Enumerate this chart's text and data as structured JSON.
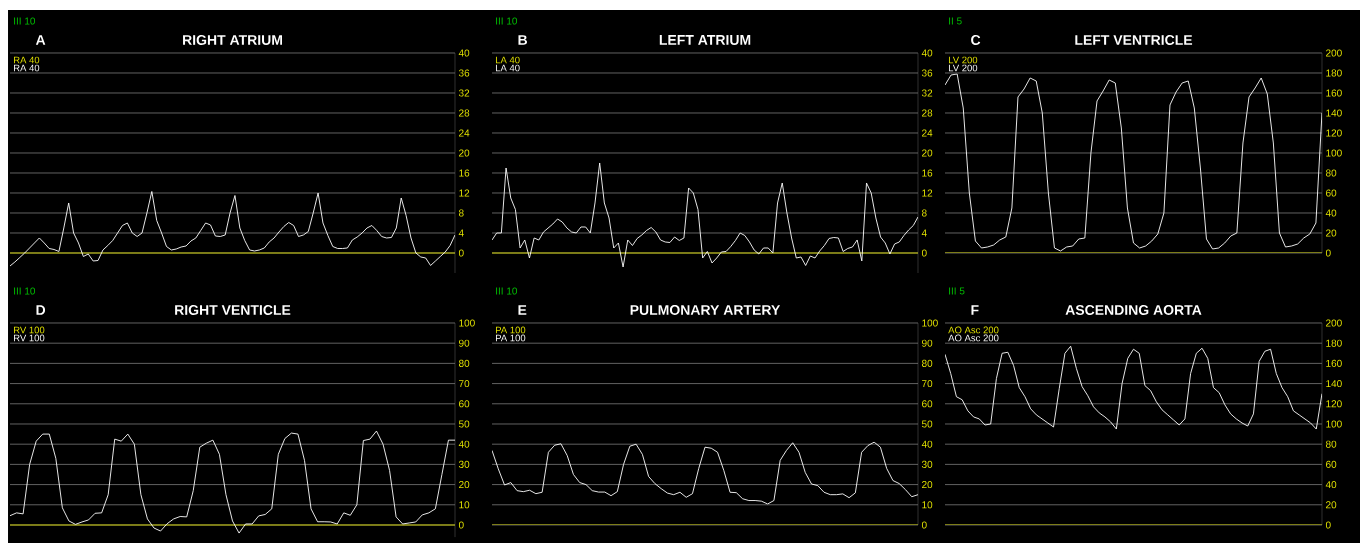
{
  "chart_data": [
    {
      "type": "line",
      "title": "RIGHT ATRIUM",
      "annotations": [
        "A",
        "RA 40",
        "RA 40",
        "III 10"
      ],
      "grid": "y",
      "tick_labels": "y",
      "ylim": [
        -4,
        40
      ],
      "yticks": [
        0,
        4,
        8,
        12,
        16,
        20,
        24,
        28,
        32,
        36,
        40
      ],
      "ref_lines": [
        {
          "axis": "y",
          "value": 0,
          "color": "#c8c800"
        }
      ],
      "categories": [
        null,
        null,
        null,
        null,
        null,
        null,
        null,
        null,
        null,
        null,
        null,
        null,
        null,
        null,
        null,
        null,
        null,
        null,
        null,
        null,
        null,
        null,
        null,
        null,
        null,
        null,
        null,
        null,
        null,
        null,
        null,
        null,
        null,
        null,
        null,
        null,
        null,
        null,
        null,
        null,
        null,
        null,
        null,
        null,
        null,
        null,
        null,
        null,
        null,
        null,
        null,
        null,
        null,
        null,
        null,
        null,
        null,
        null,
        null,
        null,
        null,
        null,
        null,
        null,
        null,
        null,
        null,
        null,
        null,
        null,
        null,
        null,
        null,
        null,
        null,
        null,
        null,
        null,
        null,
        null,
        null,
        null,
        null,
        null,
        null,
        null,
        null,
        null,
        null,
        null,
        null,
        null
      ],
      "series": [
        {
          "color": "#ffffff",
          "values": [
            -2.6,
            -1.8,
            -0.9,
            0,
            1,
            2,
            3,
            2,
            0.9,
            0.7,
            0.3,
            5,
            10,
            4,
            2,
            -0.7,
            -0.2,
            -1.6,
            -1.5,
            0.6,
            1.5,
            2.5,
            4,
            5.5,
            6,
            4,
            3.3,
            4,
            8,
            12.3,
            6.5,
            4,
            1.3,
            0.6,
            0.8,
            1.2,
            1.4,
            2.4,
            3,
            4.5,
            6,
            5.6,
            3.4,
            3.3,
            3.6,
            8,
            11.5,
            5,
            2.5,
            0.6,
            0.4,
            0.6,
            1,
            2.2,
            3,
            4.2,
            5.3,
            6.1,
            5.5,
            3.3,
            3.6,
            4.3,
            8,
            12,
            6,
            3.5,
            1.3,
            0.9,
            0.9,
            1,
            2.6,
            3.2,
            4,
            5,
            5.5,
            4.5,
            3.3,
            3,
            3.1,
            5,
            11,
            7.5,
            3,
            0,
            -0.8,
            -1,
            -2.5,
            -1.6,
            -0.7,
            0.2,
            1.5,
            3.6
          ]
        }
      ]
    },
    {
      "type": "line",
      "title": "LEFT ATRIUM",
      "annotations": [
        "B",
        "LA 40",
        "LA 40",
        "III 10"
      ],
      "grid": "y",
      "tick_labels": "y",
      "ylim": [
        -4,
        40
      ],
      "yticks": [
        0,
        4,
        8,
        12,
        16,
        20,
        24,
        28,
        32,
        36,
        40
      ],
      "ref_lines": [
        {
          "axis": "y",
          "value": 0,
          "color": "#c8c800"
        }
      ],
      "categories": [
        null,
        null,
        null,
        null,
        null,
        null,
        null,
        null,
        null,
        null,
        null,
        null,
        null,
        null,
        null,
        null,
        null,
        null,
        null,
        null,
        null,
        null,
        null,
        null,
        null,
        null,
        null,
        null,
        null,
        null,
        null,
        null,
        null,
        null,
        null,
        null,
        null,
        null,
        null,
        null,
        null,
        null,
        null,
        null,
        null,
        null,
        null,
        null,
        null,
        null,
        null,
        null,
        null,
        null,
        null,
        null,
        null,
        null,
        null,
        null,
        null,
        null,
        null,
        null,
        null,
        null,
        null,
        null,
        null,
        null,
        null,
        null,
        null,
        null,
        null,
        null,
        null,
        null,
        null,
        null,
        null,
        null,
        null,
        null,
        null,
        null,
        null,
        null,
        null,
        null,
        null,
        null
      ],
      "series": [
        {
          "color": "#ffffff",
          "values": [
            2.6,
            4,
            4,
            17,
            11,
            8.7,
            1,
            2.6,
            -1,
            3,
            2.6,
            4.2,
            5,
            5.8,
            6.8,
            6.2,
            5,
            4.2,
            4,
            5.2,
            5.2,
            4,
            10,
            18,
            10,
            7,
            1,
            2,
            -2.8,
            2.6,
            1.5,
            2.9,
            3.6,
            4.5,
            5.1,
            4.2,
            2.6,
            2.2,
            2.1,
            3.2,
            2.5,
            3,
            13,
            12,
            8.7,
            -1,
            0.3,
            -2,
            -1,
            0.2,
            0.3,
            1.3,
            2.5,
            4,
            3.5,
            2.2,
            0.6,
            -0.2,
            1,
            1,
            0,
            10,
            14,
            8,
            3,
            -1,
            -0.8,
            -2.5,
            -0.6,
            -1,
            0.4,
            1.5,
            2.9,
            3.1,
            3,
            0.3,
            0.9,
            1.2,
            2.6,
            -1.6,
            14,
            12,
            7,
            3.2,
            2,
            -0.2,
            1.8,
            2.2,
            3.5,
            4.6,
            5.5,
            7.2
          ]
        }
      ]
    },
    {
      "type": "line",
      "title": "LEFT VENTRICLE",
      "annotations": [
        "C",
        "LV 200",
        "LV 200",
        "II 5"
      ],
      "grid": "y",
      "tick_labels": "y",
      "ylim": [
        0,
        200
      ],
      "yticks": [
        0,
        20,
        40,
        60,
        80,
        100,
        120,
        140,
        160,
        180,
        200
      ],
      "ref_lines": [
        {
          "axis": "y",
          "value": 0,
          "color": "#c8c800"
        }
      ],
      "categories": [
        null,
        null,
        null,
        null,
        null,
        null,
        null,
        null,
        null,
        null,
        null,
        null,
        null,
        null,
        null,
        null,
        null,
        null,
        null,
        null,
        null,
        null,
        null,
        null,
        null,
        null,
        null,
        null,
        null,
        null,
        null,
        null,
        null,
        null,
        null,
        null,
        null,
        null,
        null,
        null,
        null,
        null,
        null,
        null,
        null,
        null,
        null,
        null,
        null,
        null,
        null,
        null,
        null,
        null,
        null,
        null,
        null,
        null,
        null,
        null,
        null,
        null,
        null
      ],
      "series": [
        {
          "color": "#ffffff",
          "values": [
            168,
            178,
            179,
            145,
            60,
            12,
            5,
            6,
            8,
            13,
            16,
            45,
            156,
            164,
            175,
            172,
            140,
            60,
            5,
            2,
            6,
            7,
            14,
            15,
            100,
            152,
            162,
            173,
            170,
            125,
            45,
            10,
            5,
            7,
            12,
            19,
            40,
            148,
            161,
            170,
            172,
            145,
            85,
            14,
            4,
            5,
            10,
            17,
            20,
            110,
            156,
            165,
            175,
            159,
            110,
            20,
            6,
            7,
            9,
            15,
            19,
            30,
            140
          ]
        }
      ]
    },
    {
      "type": "line",
      "title": "RIGHT VENTICLE",
      "annotations": [
        "D",
        "RV 100",
        "RV 100",
        "III 10"
      ],
      "grid": "y",
      "tick_labels": "y",
      "ylim": [
        -6,
        100
      ],
      "yticks": [
        0,
        10,
        20,
        30,
        40,
        50,
        60,
        70,
        80,
        90,
        100
      ],
      "ref_lines": [
        {
          "axis": "y",
          "value": 0,
          "color": "#c8c800"
        }
      ],
      "categories": [
        null,
        null,
        null,
        null,
        null,
        null,
        null,
        null,
        null,
        null,
        null,
        null,
        null,
        null,
        null,
        null,
        null,
        null,
        null,
        null,
        null,
        null,
        null,
        null,
        null,
        null,
        null,
        null,
        null,
        null,
        null,
        null,
        null,
        null,
        null,
        null,
        null,
        null,
        null,
        null,
        null,
        null,
        null,
        null,
        null,
        null,
        null,
        null,
        null,
        null,
        null,
        null,
        null,
        null,
        null,
        null,
        null,
        null,
        null,
        null,
        null,
        null,
        null,
        null,
        null,
        null,
        null,
        null,
        null
      ],
      "series": [
        {
          "color": "#ffffff",
          "values": [
            4.6,
            6,
            5.5,
            30,
            41.5,
            45,
            45,
            33,
            8.5,
            2,
            0.3,
            1.5,
            2.5,
            5.8,
            6,
            15,
            42.5,
            41.5,
            45,
            40,
            15,
            3,
            -1.5,
            -3,
            0.6,
            3,
            4.2,
            4,
            17,
            38.5,
            40.5,
            42,
            35,
            15,
            2,
            -4,
            0.5,
            0.5,
            4.5,
            5.2,
            8,
            35,
            42.8,
            45.5,
            45,
            32,
            8,
            1.6,
            1.6,
            1.5,
            0.5,
            6,
            4.8,
            10,
            41.8,
            42.5,
            46.5,
            40,
            27,
            4,
            0.5,
            1,
            1.5,
            5,
            6,
            8,
            25,
            42,
            42
          ]
        }
      ]
    },
    {
      "type": "line",
      "title": "PULMONARY ARTERY",
      "annotations": [
        "E",
        "PA 100",
        "PA 100",
        "III 10"
      ],
      "grid": "y",
      "tick_labels": "y",
      "ylim": [
        0,
        100
      ],
      "yticks": [
        0,
        10,
        20,
        30,
        40,
        50,
        60,
        70,
        80,
        90,
        100
      ],
      "ref_lines": [
        {
          "axis": "y",
          "value": 0,
          "color": "#c8c800"
        }
      ],
      "categories": [
        null,
        null,
        null,
        null,
        null,
        null,
        null,
        null,
        null,
        null,
        null,
        null,
        null,
        null,
        null,
        null,
        null,
        null,
        null,
        null,
        null,
        null,
        null,
        null,
        null,
        null,
        null,
        null,
        null,
        null,
        null,
        null,
        null,
        null,
        null,
        null,
        null,
        null,
        null,
        null,
        null,
        null,
        null,
        null,
        null,
        null,
        null,
        null,
        null,
        null,
        null,
        null,
        null,
        null,
        null,
        null,
        null,
        null,
        null,
        null,
        null,
        null,
        null,
        null,
        null,
        null,
        null,
        null,
        null
      ],
      "series": [
        {
          "color": "#ffffff",
          "values": [
            36.9,
            27.8,
            19.8,
            21,
            17,
            16.5,
            17.2,
            15.5,
            16.2,
            36,
            39.5,
            40.2,
            34.4,
            25,
            21,
            20,
            17,
            16.3,
            16.3,
            14.5,
            16.5,
            30,
            39,
            40,
            35,
            24,
            20.5,
            18,
            15.8,
            15,
            16.2,
            13.7,
            15.5,
            28,
            38.5,
            38,
            36,
            27,
            16.2,
            16,
            13,
            12.1,
            12.1,
            11.8,
            10.4,
            12.1,
            32,
            36.9,
            40.7,
            36,
            26,
            20.3,
            19.5,
            16.2,
            15,
            15,
            15.4,
            13.5,
            15.9,
            36,
            39.3,
            41,
            38.5,
            28,
            22,
            20.5,
            17.5,
            14,
            15
          ]
        }
      ]
    },
    {
      "type": "line",
      "title": "ASCENDING AORTA",
      "annotations": [
        "F",
        "AO Asc 200",
        "AO Asc 200",
        "III 5"
      ],
      "grid": "y",
      "tick_labels": "y",
      "ylim": [
        0,
        200
      ],
      "yticks": [
        0,
        20,
        40,
        60,
        80,
        100,
        120,
        140,
        160,
        180,
        200
      ],
      "ref_lines": [
        {
          "axis": "y",
          "value": 0,
          "color": "#c8c800"
        }
      ],
      "categories": [
        null,
        null,
        null,
        null,
        null,
        null,
        null,
        null,
        null,
        null,
        null,
        null,
        null,
        null,
        null,
        null,
        null,
        null,
        null,
        null,
        null,
        null,
        null,
        null,
        null,
        null,
        null,
        null,
        null,
        null,
        null,
        null,
        null,
        null,
        null,
        null,
        null,
        null,
        null,
        null,
        null,
        null,
        null,
        null,
        null,
        null,
        null,
        null,
        null,
        null,
        null,
        null,
        null,
        null,
        null,
        null,
        null,
        null,
        null,
        null,
        null,
        null,
        null,
        null,
        null,
        null,
        null
      ],
      "series": [
        {
          "color": "#ffffff",
          "values": [
            169,
            150,
            127,
            124,
            113,
            107,
            105,
            99,
            100,
            145,
            170,
            171,
            158,
            136,
            127,
            115,
            109,
            105,
            101,
            97,
            135,
            170,
            177,
            155,
            137,
            128,
            117,
            111,
            107,
            102,
            95,
            140,
            165,
            174,
            170,
            138,
            133,
            122,
            114,
            109,
            104,
            99,
            105,
            150,
            170,
            175,
            165,
            136,
            131,
            119,
            110,
            105,
            101,
            98,
            110,
            162,
            172,
            174,
            150,
            136,
            127,
            113,
            109,
            105,
            101,
            95,
            130
          ]
        }
      ]
    }
  ]
}
